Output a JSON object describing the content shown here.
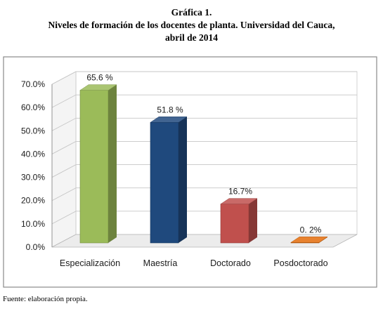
{
  "figure": {
    "number": "Gráfica 1.",
    "title_line1": "Niveles de formación de los docentes de planta. Universidad del Cauca,",
    "title_line2": "abril de 2014",
    "source": "Fuente: elaboración propia."
  },
  "chart_data": {
    "type": "bar",
    "categories": [
      "Especialización",
      "Maestría",
      "Doctorado",
      "Posdoctorado"
    ],
    "values": [
      65.6,
      51.8,
      16.7,
      0.2
    ],
    "data_labels": [
      "65.6 %",
      "51.8 %",
      "16.7%",
      "0. 2%"
    ],
    "y_ticks": [
      "0.0%",
      "10.0%",
      "20.0%",
      "30.0%",
      "40.0%",
      "50.0%",
      "60.0%",
      "70.0%"
    ],
    "ylim": [
      0,
      70
    ],
    "grid": true,
    "colors": [
      "#9bbb59",
      "#1f497d",
      "#c0504d",
      "#e46c0a"
    ],
    "legend": "none",
    "projection": "3d"
  }
}
